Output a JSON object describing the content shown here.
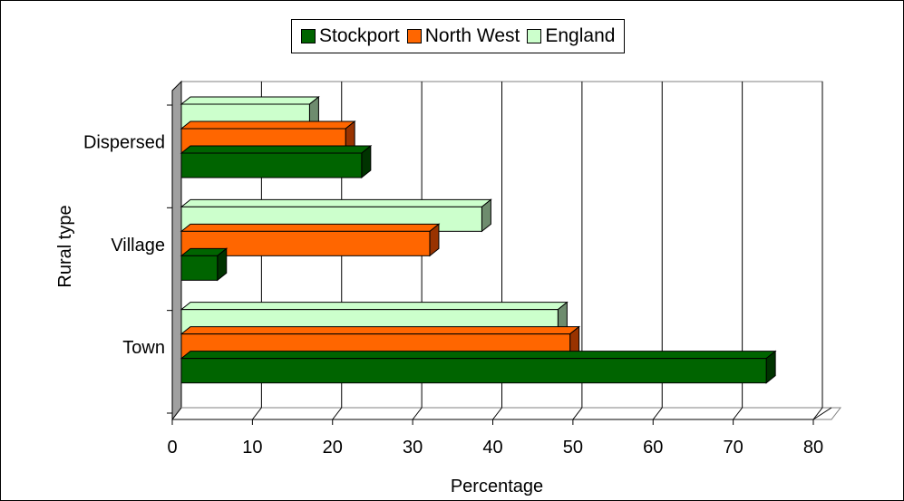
{
  "chart_data": {
    "type": "bar",
    "orientation": "horizontal",
    "categories": [
      "Town",
      "Village",
      "Dispersed"
    ],
    "series": [
      {
        "name": "Stockport",
        "values": [
          73,
          4.5,
          22.5
        ],
        "color": "#006400",
        "side_color": "#003300"
      },
      {
        "name": "North West",
        "values": [
          48.5,
          31,
          20.5
        ],
        "color": "#FF6600",
        "side_color": "#993300"
      },
      {
        "name": "England",
        "values": [
          47,
          37.5,
          16
        ],
        "color": "#CCFFCC",
        "side_color": "#6E8C6E"
      }
    ],
    "xlabel": "Percentage",
    "ylabel": "Rural type",
    "xlim": [
      0,
      80
    ],
    "xticks": [
      "0",
      "10",
      "20",
      "30",
      "40",
      "50",
      "60",
      "70",
      "80"
    ],
    "grid": true,
    "legend_position": "top"
  }
}
